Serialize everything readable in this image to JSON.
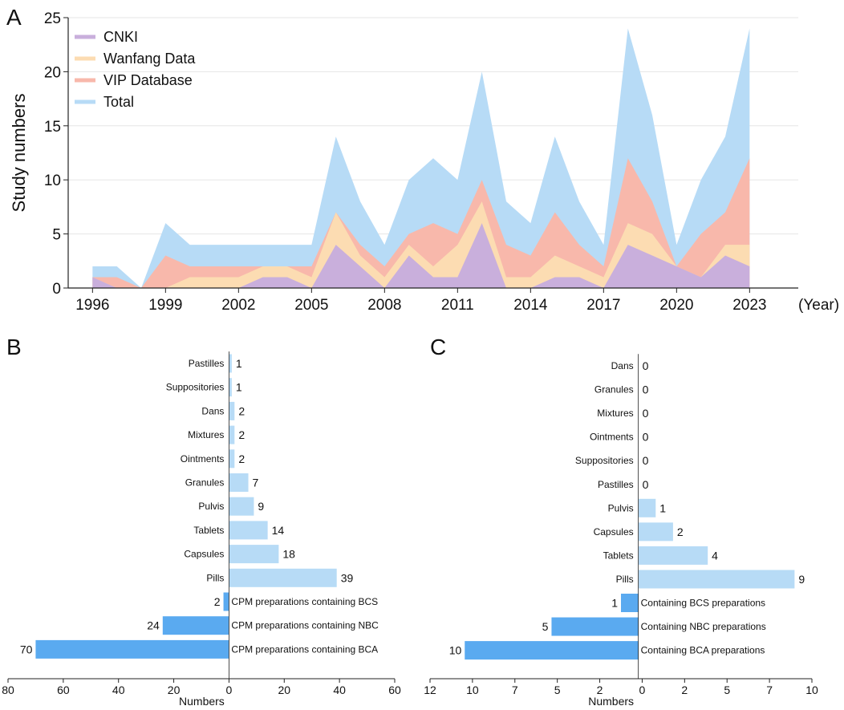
{
  "chart_data": [
    {
      "panel": "A",
      "type": "area",
      "xlabel": "(Year)",
      "ylabel": "Study numbers",
      "ylim": [
        0,
        25
      ],
      "xlim": [
        1995,
        2025
      ],
      "yticks": [
        0,
        5,
        10,
        15,
        20,
        25
      ],
      "xticks": [
        1996,
        1999,
        2002,
        2005,
        2008,
        2011,
        2014,
        2017,
        2020,
        2023
      ],
      "grid": true,
      "legend_position": "top-left",
      "x": [
        1996,
        1997,
        1998,
        1999,
        2000,
        2001,
        2002,
        2003,
        2004,
        2005,
        2006,
        2007,
        2008,
        2009,
        2010,
        2011,
        2012,
        2013,
        2014,
        2015,
        2016,
        2017,
        2018,
        2019,
        2020,
        2021,
        2022,
        2023
      ],
      "series": [
        {
          "name": "Total",
          "color": "#b7dbf6",
          "values": [
            2,
            2,
            0,
            6,
            4,
            4,
            4,
            4,
            4,
            4,
            14,
            8,
            4,
            10,
            12,
            10,
            20,
            8,
            6,
            14,
            8,
            4,
            24,
            16,
            4,
            10,
            14,
            24
          ]
        },
        {
          "name": "VIP Database",
          "color": "#f8b8ab",
          "values": [
            1,
            1,
            0,
            3,
            2,
            2,
            2,
            2,
            2,
            2,
            7,
            4,
            2,
            5,
            6,
            5,
            10,
            4,
            3,
            7,
            4,
            2,
            12,
            8,
            2,
            5,
            7,
            12
          ]
        },
        {
          "name": "Wanfang Data",
          "color": "#fcdcb2",
          "values": [
            1,
            0,
            0,
            0,
            1,
            1,
            1,
            2,
            2,
            1,
            7,
            3,
            1,
            4,
            2,
            4,
            8,
            1,
            1,
            3,
            2,
            1,
            6,
            5,
            2,
            1,
            4,
            4
          ]
        },
        {
          "name": "CNKI",
          "color": "#c9afdc",
          "values": [
            1,
            0,
            0,
            0,
            0,
            0,
            0,
            1,
            1,
            0,
            4,
            2,
            0,
            3,
            1,
            1,
            6,
            0,
            0,
            1,
            1,
            0,
            4,
            3,
            2,
            1,
            3,
            2
          ]
        }
      ],
      "legend_order": [
        "CNKI",
        "Wanfang Data",
        "VIP Database",
        "Total"
      ]
    },
    {
      "panel": "B",
      "type": "bar",
      "orientation": "horizontal",
      "xlabel": "Numbers",
      "xlim": [
        -80,
        60
      ],
      "xtick_labels": [
        "80",
        "60",
        "40",
        "20",
        "0",
        "20",
        "40",
        "60"
      ],
      "categories": [
        "Pastilles",
        "Suppositories",
        "Dans",
        "Mixtures",
        "Ointments",
        "Granules",
        "Pulvis",
        "Tablets",
        "Capsules",
        "Pills",
        "CPM preparations containing BCS",
        "CPM preparations containing NBC",
        "CPM preparations containing BCA"
      ],
      "values": [
        1,
        1,
        2,
        2,
        2,
        7,
        9,
        14,
        18,
        39,
        -2,
        -24,
        -70
      ],
      "value_labels": [
        "1",
        "1",
        "2",
        "2",
        "2",
        "7",
        "9",
        "14",
        "18",
        "39",
        "2",
        "24",
        "70"
      ]
    },
    {
      "panel": "C",
      "type": "bar",
      "orientation": "horizontal",
      "xlabel": "Numbers",
      "xlim": [
        -12,
        10
      ],
      "xtick_labels": [
        "12",
        "10",
        "7",
        "5",
        "2",
        "0",
        "2",
        "5",
        "7",
        "10"
      ],
      "categories": [
        "Dans",
        "Granules",
        "Mixtures",
        "Ointments",
        "Suppositories",
        "Pastilles",
        "Pulvis",
        "Capsules",
        "Tablets",
        "Pills",
        "Containing BCS preparations",
        "Containing NBC preparations",
        "Containing BCA preparations"
      ],
      "values": [
        0,
        0,
        0,
        0,
        0,
        0,
        1,
        2,
        4,
        9,
        -1,
        -5,
        -10
      ],
      "value_labels": [
        "0",
        "0",
        "0",
        "0",
        "0",
        "0",
        "1",
        "2",
        "4",
        "9",
        "1",
        "5",
        "10"
      ]
    }
  ],
  "panel_letters": {
    "a": "A",
    "b": "B",
    "c": "C"
  },
  "colors": {
    "positive_bar": "#b7dbf6",
    "negative_bar": "#5aaaf0",
    "axis": "#222222",
    "grid": "#e6e6e6"
  }
}
